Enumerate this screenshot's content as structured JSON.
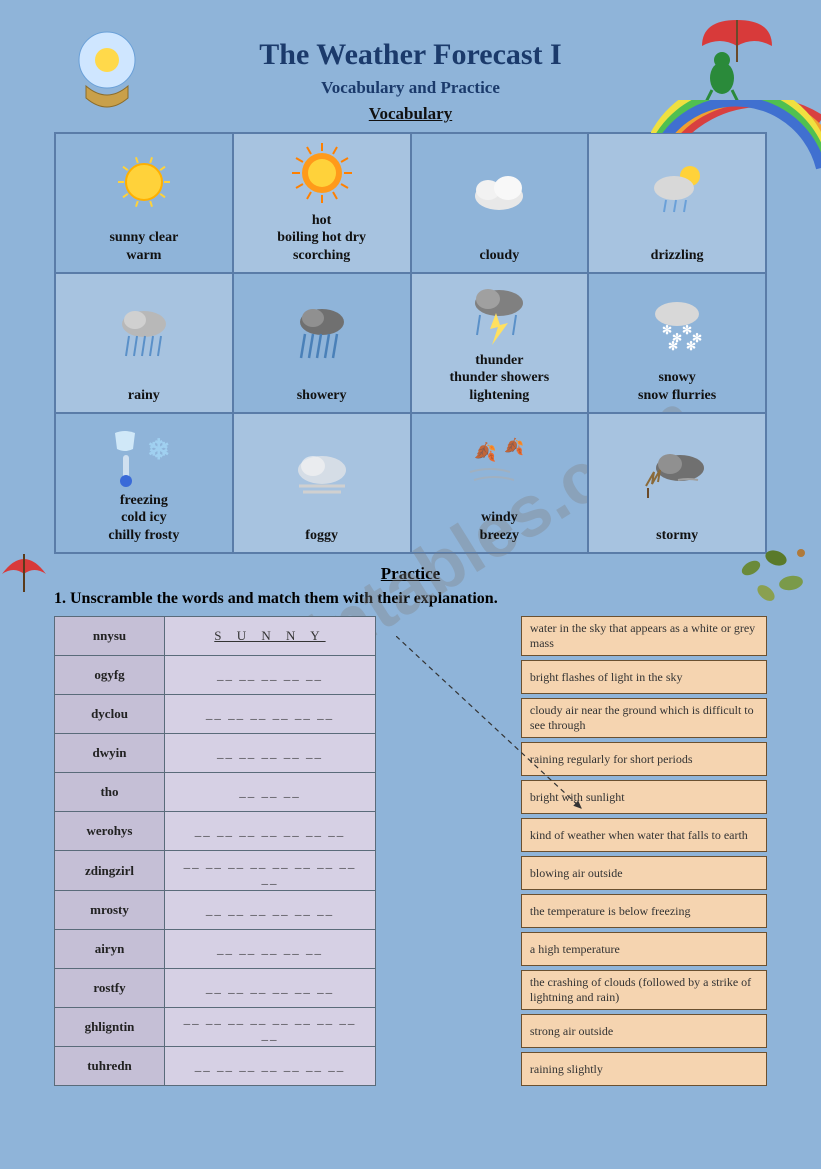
{
  "title": "The Weather Forecast I",
  "subtitle": "Vocabulary and Practice",
  "vocab_heading": "Vocabulary",
  "practice_heading": "Practice",
  "instruction": "1.  Unscramble the words and match them with their explanation.",
  "colors": {
    "page_bg": "#8fb4d9",
    "title_color": "#1b3a6b",
    "grid_border": "#5a7ca8",
    "grid_alt_bg": "#a7c3e0",
    "scramble_bg": "#c5bfd6",
    "scramble_ans_bg": "#d6d0e4",
    "scramble_border": "#5a6b7a",
    "def_bg": "#f5d4b0",
    "def_border": "#6a5030",
    "watermark_color": "rgba(130,130,130,0.35)"
  },
  "vocab": [
    {
      "label": "sunny  clear\nwarm",
      "icon": "sun",
      "alt": false
    },
    {
      "label": "hot\nboiling hot     dry\nscorching",
      "icon": "hot-sun",
      "alt": true
    },
    {
      "label": "cloudy",
      "icon": "cloud",
      "alt": false
    },
    {
      "label": "drizzling",
      "icon": "drizzle",
      "alt": true
    },
    {
      "label": "rainy",
      "icon": "rain",
      "alt": true
    },
    {
      "label": "showery",
      "icon": "shower",
      "alt": false
    },
    {
      "label": "thunder\nthunder showers\nlightening",
      "icon": "thunder",
      "alt": true
    },
    {
      "label": "snowy\nsnow flurries",
      "icon": "snow",
      "alt": false
    },
    {
      "label": "freezing\ncold  icy\nchilly frosty",
      "icon": "freeze",
      "alt": false
    },
    {
      "label": "foggy",
      "icon": "fog",
      "alt": true
    },
    {
      "label": "windy\nbreezy",
      "icon": "wind",
      "alt": false
    },
    {
      "label": "stormy",
      "icon": "storm",
      "alt": true
    }
  ],
  "scramble": [
    {
      "word": "nnysu",
      "answer": "S U N N Y"
    },
    {
      "word": "ogyfg",
      "answer": "__ __ __ __ __"
    },
    {
      "word": "dyclou",
      "answer": "__ __ __ __ __ __"
    },
    {
      "word": "dwyin",
      "answer": "__ __ __ __ __"
    },
    {
      "word": "tho",
      "answer": "__ __ __"
    },
    {
      "word": "werohys",
      "answer": "__ __ __ __ __ __ __"
    },
    {
      "word": "zdingzirl",
      "answer": "__ __ __ __ __ __ __ __ __"
    },
    {
      "word": "mrosty",
      "answer": "__ __ __ __ __ __"
    },
    {
      "word": "airyn",
      "answer": "__ __ __ __ __"
    },
    {
      "word": "rostfy",
      "answer": "__ __ __ __ __ __"
    },
    {
      "word": "ghligntin",
      "answer": "__ __ __ __ __ __ __ __ __"
    },
    {
      "word": "tuhredn",
      "answer": "__ __ __ __ __ __ __"
    }
  ],
  "definitions": [
    "water in the sky that appears as a white or grey mass",
    "bright flashes of light in the sky",
    "cloudy air near the ground which is difficult to see through",
    "raining regularly for short periods",
    "bright with sunlight",
    "kind of weather when water that falls to earth",
    "blowing air outside",
    "the temperature is below freezing",
    "a high temperature",
    "the crashing of clouds (followed by a strike of lightning and rain)",
    "strong air outside",
    "raining slightly"
  ],
  "watermark": "ESLprintables.com"
}
